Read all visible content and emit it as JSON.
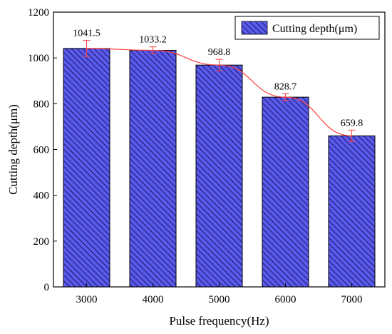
{
  "chart_data": {
    "type": "bar",
    "title": "",
    "xlabel": "Pulse frequency(Hz)",
    "ylabel": "Cutting depth(μm)",
    "categories": [
      "3000",
      "4000",
      "5000",
      "6000",
      "7000"
    ],
    "series": [
      {
        "name": "Cutting depth(μm)",
        "values": [
          1041.5,
          1033.2,
          968.8,
          828.7,
          659.8
        ],
        "value_labels": [
          "1041.5",
          "1033.2",
          "968.8",
          "828.7",
          "659.8"
        ],
        "errors": [
          35,
          15,
          25,
          15,
          25
        ]
      }
    ],
    "ylim": [
      0,
      1200
    ],
    "yticks": [
      "0",
      "200",
      "400",
      "600",
      "800",
      "1000",
      "1200"
    ],
    "trend_line": true,
    "grid": false,
    "legend_position": "top-right",
    "colors": {
      "bar_fill": "#5a5aec",
      "bar_hatch": "#1a1a6e",
      "trend_line": "#ff4040",
      "error_bar": "#ff4040",
      "axis": "#000000"
    }
  }
}
